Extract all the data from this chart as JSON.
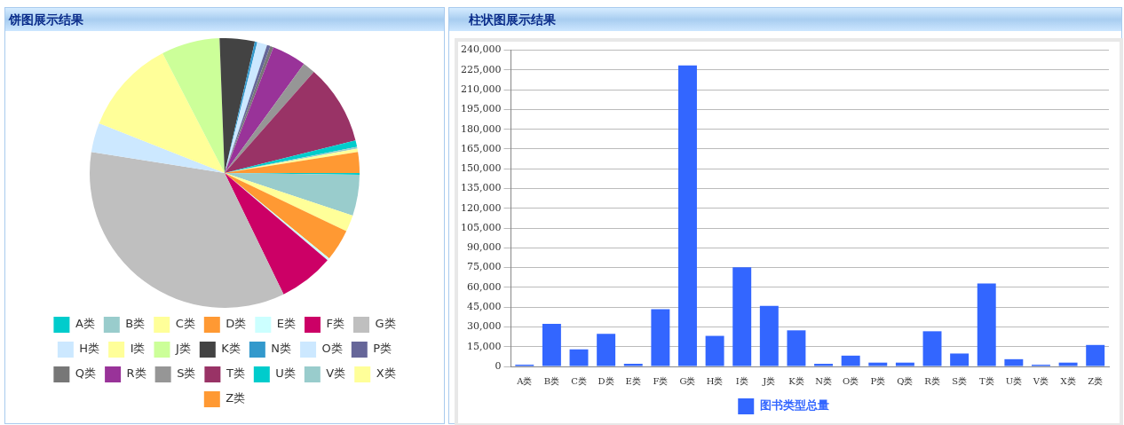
{
  "chart_data": [
    {
      "type": "pie",
      "title": "饼图展示结果",
      "legend": "bottom",
      "categories": [
        "A类",
        "B类",
        "C类",
        "D类",
        "E类",
        "F类",
        "G类",
        "H类",
        "I类",
        "J类",
        "K类",
        "N类",
        "O类",
        "P类",
        "Q类",
        "R类",
        "S类",
        "T类",
        "U类",
        "V类",
        "X类",
        "Z类"
      ],
      "values": [
        0.2,
        4.9,
        2.0,
        3.8,
        0.3,
        6.6,
        34.7,
        3.5,
        11.4,
        7.0,
        4.2,
        0.3,
        1.2,
        0.4,
        0.4,
        4.1,
        1.5,
        9.6,
        0.8,
        0.2,
        0.4,
        2.5
      ],
      "colors": [
        "#00cccc",
        "#99cccc",
        "#ffff99",
        "#ff9933",
        "#ccffff",
        "#cc0066",
        "#bfbfbf",
        "#cce8ff",
        "#ffff99",
        "#ccff99",
        "#434343",
        "#3399cc",
        "#cce8ff",
        "#666699",
        "#777777",
        "#993399",
        "#969696",
        "#993366",
        "#00cccc",
        "#99cccc",
        "#ffff99",
        "#ff9933"
      ]
    },
    {
      "type": "bar",
      "title": "柱状图展示结果",
      "legend": "bottom",
      "grid": "y",
      "categories": [
        "A类",
        "B类",
        "C类",
        "D类",
        "E类",
        "F类",
        "G类",
        "H类",
        "I类",
        "J类",
        "K类",
        "N类",
        "O类",
        "P类",
        "Q类",
        "R类",
        "S类",
        "T类",
        "U类",
        "V类",
        "X类",
        "Z类"
      ],
      "series": [
        {
          "name": "图书类型总量",
          "color": "#3366ff",
          "values": [
            1300,
            32300,
            13000,
            24800,
            2000,
            43400,
            228500,
            23200,
            75300,
            46000,
            27400,
            2000,
            8200,
            2900,
            2900,
            26700,
            9800,
            62900,
            5500,
            1300,
            2900,
            16300
          ]
        }
      ],
      "ylim": [
        0,
        240000
      ],
      "yticks": [
        0,
        {
          "value": 15000,
          "label": "15,000"
        },
        {
          "value": 30000,
          "label": "30,000"
        },
        {
          "value": 45000,
          "label": "45,000"
        },
        {
          "value": 60000,
          "label": "60,000"
        },
        {
          "value": 75000,
          "label": "75,000"
        },
        {
          "value": 90000,
          "label": "90,000"
        },
        {
          "value": 105000,
          "label": "105,000"
        },
        {
          "value": 120000,
          "label": "120,000"
        },
        {
          "value": 135000,
          "label": "135,000"
        },
        {
          "value": 150000,
          "label": "150,000"
        },
        {
          "value": 165000,
          "label": "165,000"
        },
        {
          "value": 180000,
          "label": "180,000"
        },
        {
          "value": 195000,
          "label": "195,000"
        },
        {
          "value": 210000,
          "label": "210,000"
        },
        {
          "value": 225000,
          "label": "225,000"
        },
        {
          "value": 240000,
          "label": "240,000"
        }
      ]
    }
  ]
}
